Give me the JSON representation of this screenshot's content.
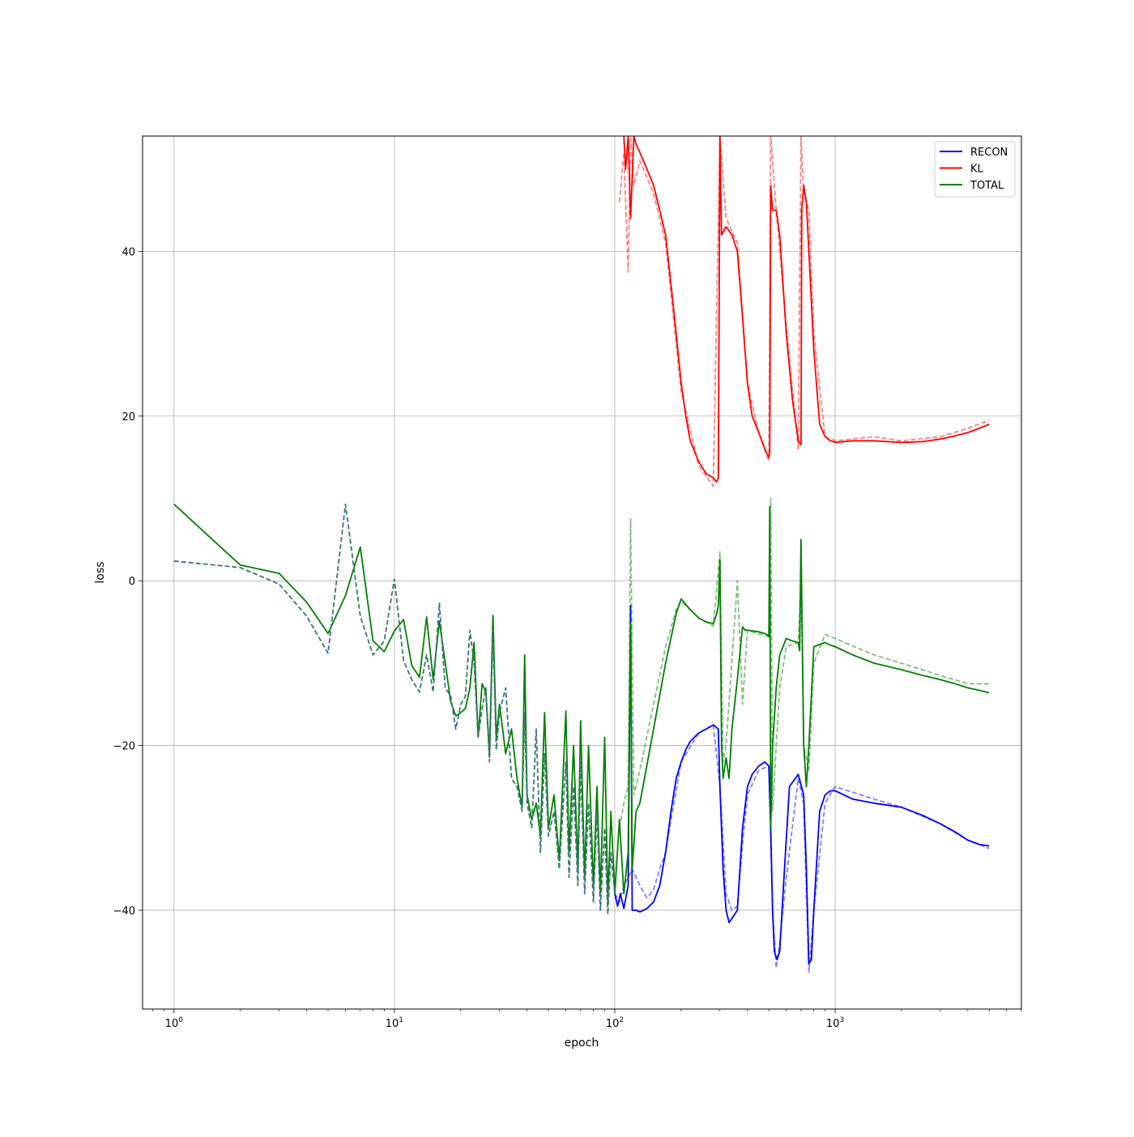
{
  "chart_data": {
    "type": "line",
    "title": "",
    "xlabel": "epoch",
    "ylabel": "loss",
    "xscale": "log",
    "xlim": [
      0.72,
      7000
    ],
    "ylim": [
      -52,
      54
    ],
    "grid": true,
    "legend_position": "top-right",
    "x_ticks": [
      {
        "value": 1,
        "base": "10",
        "exp": "0"
      },
      {
        "value": 10,
        "base": "10",
        "exp": "1"
      },
      {
        "value": 100,
        "base": "10",
        "exp": "2"
      },
      {
        "value": 1000,
        "base": "10",
        "exp": "3"
      }
    ],
    "y_ticks": [
      {
        "value": -40,
        "label": "−40"
      },
      {
        "value": -20,
        "label": "−20"
      },
      {
        "value": 0,
        "label": "0"
      },
      {
        "value": 20,
        "label": "20"
      },
      {
        "value": 40,
        "label": "40"
      }
    ],
    "legend": [
      {
        "label": "RECON",
        "color": "#0000ff"
      },
      {
        "label": "KL",
        "color": "#ff0000"
      },
      {
        "label": "TOTAL",
        "color": "#008000"
      }
    ],
    "series": [
      {
        "name": "RECON",
        "style": "solid",
        "color": "#0000ff",
        "opacity": 1,
        "x": [
          100,
          103,
          106,
          110,
          115,
          118,
          120,
          125,
          130,
          140,
          150,
          160,
          170,
          180,
          190,
          200,
          210,
          220,
          240,
          260,
          280,
          295,
          300,
          310,
          320,
          330,
          340,
          360,
          380,
          400,
          420,
          450,
          480,
          500,
          510,
          520,
          530,
          545,
          560,
          580,
          620,
          680,
          720,
          740,
          760,
          780,
          800,
          850,
          900,
          950,
          1000,
          1200,
          1500,
          2000,
          2500,
          3000,
          3500,
          4000,
          4500,
          5000
        ],
        "y": [
          -38,
          -39.5,
          -38,
          -39.8,
          -37,
          -3,
          -40,
          -40,
          -40.2,
          -39.8,
          -39,
          -37,
          -33,
          -28,
          -24,
          -22,
          -20.5,
          -19.5,
          -18.5,
          -18,
          -17.5,
          -18,
          -25,
          -35,
          -40,
          -41.5,
          -41,
          -40,
          -30,
          -25,
          -23.5,
          -22.5,
          -22,
          -22.5,
          -30,
          -40,
          -45,
          -46,
          -45,
          -38,
          -25,
          -23.5,
          -26,
          -35,
          -46.5,
          -46,
          -40,
          -28,
          -26,
          -25.5,
          -25.5,
          -26.5,
          -27,
          -27.5,
          -28.5,
          -29.5,
          -30.5,
          -31.5,
          -32,
          -32.2
        ]
      },
      {
        "name": "RECON",
        "style": "dashed",
        "color": "#0000ff",
        "opacity": 0.5,
        "x": [
          100,
          105,
          110,
          115,
          120,
          130,
          140,
          150,
          160,
          170,
          180,
          200,
          240,
          280,
          300,
          320,
          340,
          360,
          380,
          400,
          450,
          500,
          520,
          540,
          560,
          600,
          680,
          720,
          760,
          800,
          900,
          1000,
          1500,
          2000,
          3000,
          4000,
          5000
        ],
        "y": [
          -38,
          -39,
          -37,
          -36,
          -35,
          -37,
          -38.5,
          -37.5,
          -35,
          -33,
          -29,
          -22,
          -18.5,
          -17.5,
          -25,
          -38,
          -40,
          -39.5,
          -32,
          -26,
          -23,
          -22.5,
          -40,
          -47,
          -44,
          -36,
          -24,
          -27,
          -47.5,
          -40,
          -27,
          -25,
          -26.5,
          -27.5,
          -29.5,
          -31.5,
          -32.5
        ]
      },
      {
        "name": "KL",
        "style": "solid",
        "color": "#ff0000",
        "opacity": 1,
        "x": [
          110,
          112,
          115,
          118,
          122,
          125,
          130,
          140,
          150,
          160,
          170,
          180,
          190,
          200,
          210,
          220,
          240,
          260,
          280,
          290,
          295,
          300,
          305,
          320,
          340,
          360,
          380,
          400,
          420,
          450,
          480,
          500,
          505,
          510,
          520,
          540,
          560,
          580,
          600,
          640,
          680,
          700,
          705,
          720,
          740,
          760,
          800,
          850,
          900,
          950,
          1000,
          1200,
          1500,
          2000,
          2500,
          3000,
          3500,
          4000,
          4500,
          5000
        ],
        "y": [
          54,
          50,
          54,
          44,
          54,
          53,
          52,
          50,
          48,
          45,
          42,
          36,
          30,
          24,
          20,
          17,
          14.5,
          13,
          12.5,
          12,
          12.5,
          54,
          42,
          43,
          42,
          40,
          32,
          24,
          20,
          18,
          16,
          15,
          15.5,
          48,
          45,
          45,
          42,
          36,
          30,
          22,
          17,
          16.5,
          45,
          48,
          46,
          40,
          28,
          19,
          17.5,
          17,
          16.8,
          17,
          17,
          16.8,
          16.9,
          17.2,
          17.6,
          18,
          18.5,
          19
        ]
      },
      {
        "name": "KL",
        "style": "dashed",
        "color": "#ff0000",
        "opacity": 0.5,
        "x": [
          105,
          110,
          115,
          118,
          122,
          130,
          150,
          170,
          200,
          240,
          280,
          300,
          320,
          360,
          400,
          450,
          500,
          510,
          540,
          600,
          680,
          700,
          720,
          760,
          800,
          900,
          1000,
          1500,
          2000,
          3000,
          4000,
          5000
        ],
        "y": [
          46,
          52,
          37.5,
          54,
          48,
          51,
          47,
          41,
          23,
          14,
          11.5,
          54,
          44,
          41,
          24,
          18,
          14.5,
          54,
          45,
          31,
          16,
          54,
          47,
          45,
          30,
          17.5,
          17,
          17.5,
          17,
          17.5,
          18.5,
          19.5
        ]
      },
      {
        "name": "TOTAL",
        "style": "solid",
        "color": "#008000",
        "opacity": 1,
        "x": [
          1,
          2,
          3,
          4,
          5,
          6,
          7,
          8,
          9,
          10,
          11,
          12,
          13,
          14,
          15,
          16,
          17,
          18,
          19,
          20,
          21,
          22,
          23,
          24,
          25,
          26,
          27,
          28,
          29,
          30,
          32,
          34,
          36,
          38,
          39,
          40,
          42,
          44,
          46,
          48,
          50,
          53,
          56,
          60,
          62,
          65,
          68,
          70,
          73,
          76,
          80,
          83,
          86,
          90,
          93,
          96,
          100,
          105,
          110,
          115,
          118,
          120,
          125,
          130,
          150,
          170,
          190,
          200,
          220,
          240,
          260,
          280,
          290,
          295,
          300,
          305,
          310,
          320,
          330,
          340,
          360,
          380,
          390,
          400,
          450,
          480,
          500,
          505,
          510,
          520,
          540,
          560,
          600,
          640,
          680,
          690,
          700,
          720,
          740,
          760,
          800,
          900,
          950,
          1000,
          1200,
          1500,
          2000,
          2500,
          3000,
          3500,
          4000,
          4500,
          5000
        ],
        "y": [
          9.3,
          1.9,
          0.9,
          -2.6,
          -6.4,
          -1.8,
          4.1,
          -7.3,
          -8.6,
          -6.1,
          -4.7,
          -10.3,
          -11.7,
          -4.4,
          -12.0,
          -4.9,
          -9.9,
          -14.7,
          -16.4,
          -16.0,
          -15.5,
          -13.0,
          -7.5,
          -19.0,
          -12.5,
          -13.5,
          -21.0,
          -4.2,
          -19.0,
          -15.0,
          -21.0,
          -18.0,
          -24.0,
          -27.5,
          -9.0,
          -26.0,
          -29.0,
          -27.0,
          -31.0,
          -16.0,
          -30.0,
          -26.0,
          -34.0,
          -15.8,
          -33.0,
          -20.0,
          -35.0,
          -17.0,
          -36.0,
          -20.0,
          -37.0,
          -25.0,
          -38.0,
          -19.0,
          -39.0,
          -28.0,
          -38.0,
          -29.0,
          -38.0,
          -33.0,
          -5.0,
          -35.0,
          -28.0,
          -27.0,
          -18.0,
          -10.0,
          -4.0,
          -2.2,
          -3.5,
          -4.5,
          -5.0,
          -5.2,
          -4.0,
          -3.0,
          2.5,
          -20.0,
          -24.0,
          -21.5,
          -24.0,
          -18.0,
          -12.0,
          -5.6,
          -6.0,
          -6.0,
          -6.2,
          -6.4,
          -6.8,
          9.0,
          -30.0,
          -20.0,
          -13.0,
          -9.0,
          -7.0,
          -7.3,
          -7.5,
          -8.5,
          5.0,
          -20.0,
          -25.0,
          -20.0,
          -8.0,
          -7.5,
          -7.8,
          -8.0,
          -9.0,
          -10.0,
          -10.8,
          -11.5,
          -12.0,
          -12.5,
          -13.0,
          -13.3,
          -13.6
        ]
      },
      {
        "name": "TOTAL",
        "style": "dashed",
        "color": "#008000",
        "opacity": 0.5,
        "x": [
          105,
          110,
          115,
          118,
          122,
          130,
          150,
          170,
          190,
          200,
          240,
          280,
          300,
          310,
          320,
          360,
          380,
          400,
          450,
          500,
          510,
          520,
          540,
          560,
          600,
          680,
          700,
          720,
          760,
          800,
          900,
          1000,
          1500,
          2000,
          3000,
          4000,
          5000
        ],
        "y": [
          -30,
          -27,
          -25,
          7.5,
          -26,
          -23,
          -15,
          -8,
          -3.5,
          -2.5,
          -4.5,
          -5.5,
          3.5,
          -22,
          -20,
          0,
          -15,
          -6,
          -6.5,
          -6.5,
          10,
          -28,
          -20,
          -13,
          -8,
          -7.5,
          0,
          -20,
          -23,
          -10,
          -6.5,
          -7,
          -9,
          -10,
          -11.5,
          -12.5,
          -12.5
        ]
      },
      {
        "name": "",
        "style": "dashed",
        "color": "#3a7575",
        "opacity": 1,
        "x": [
          1,
          2,
          3,
          4,
          5,
          6,
          7,
          8,
          9,
          10,
          11,
          12,
          13,
          14,
          15,
          16,
          17,
          18,
          19,
          20,
          21,
          22,
          23,
          24,
          25,
          26,
          27,
          28,
          29,
          30,
          32,
          34,
          36,
          38,
          39,
          40,
          42,
          44,
          46,
          48,
          50,
          53,
          56,
          60,
          62,
          65,
          68,
          70,
          73,
          76,
          80,
          83,
          86,
          90,
          93,
          96,
          100
        ],
        "y": [
          2.4,
          1.6,
          -0.4,
          -4.3,
          -8.8,
          9.3,
          -4.3,
          -9.0,
          -7.3,
          0.2,
          -9.7,
          -12.0,
          -13.5,
          -9.0,
          -13.5,
          -2.7,
          -13.0,
          -14.0,
          -18.0,
          -15.0,
          -14.0,
          -6.0,
          -10.0,
          -19.0,
          -15.5,
          -13.0,
          -22.0,
          -6.0,
          -20.5,
          -16.0,
          -13.0,
          -24.0,
          -25.0,
          -28.0,
          -16.0,
          -27.0,
          -30.0,
          -18.0,
          -33.0,
          -21.0,
          -31.0,
          -28.0,
          -35.0,
          -22.0,
          -36.0,
          -25.0,
          -37.0,
          -22.0,
          -38.0,
          -27.0,
          -39.0,
          -28.0,
          -40.0,
          -30.0,
          -40.5,
          -33.0,
          -38.0
        ]
      }
    ]
  }
}
